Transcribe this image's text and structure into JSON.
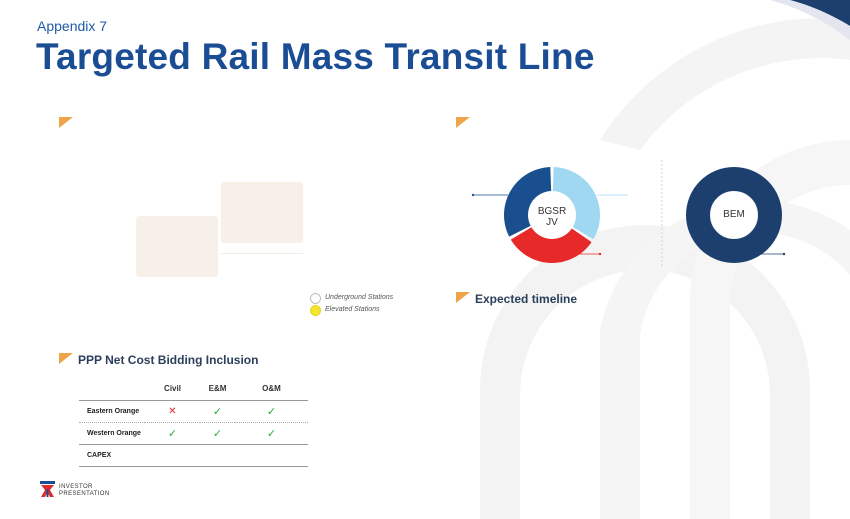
{
  "header": {
    "appendix": "Appendix 7",
    "title": "Targeted Rail Mass Transit Line"
  },
  "map": {
    "legend": [
      {
        "label": "Underground Stations",
        "color": "#ffffff"
      },
      {
        "label": "Elevated Stations",
        "color": "#f4e531"
      }
    ]
  },
  "shareholding": {
    "donuts": [
      {
        "label_line1": "BGSR",
        "label_line2": "JV",
        "segments": [
          {
            "share": 0.34,
            "color": "#9fd8f0"
          },
          {
            "share": 0.33,
            "color": "#e62a2a"
          },
          {
            "share": 0.33,
            "color": "#1a4f8f"
          }
        ]
      },
      {
        "label_line1": "BEM",
        "label_line2": "",
        "segments": [
          {
            "share": 1.0,
            "color": "#1c3f6e"
          }
        ]
      }
    ]
  },
  "timeline": {
    "title": "Expected timeline"
  },
  "ppp": {
    "title": "PPP Net Cost Bidding Inclusion",
    "columns": [
      "Civil",
      "E&M",
      "O&M"
    ],
    "rows": [
      {
        "label": "Eastern Orange",
        "civil": "✕",
        "em": "✓",
        "om": "✓"
      },
      {
        "label": "Western Orange",
        "civil": "✓",
        "em": "✓",
        "om": "✓"
      },
      {
        "label": "CAPEX",
        "civil": "",
        "em": "",
        "om": ""
      }
    ]
  },
  "footer": {
    "line1": "INVESTOR",
    "line2": "PRESENTATION"
  },
  "colors": {
    "brand_blue": "#1a4d94",
    "accent_orange": "#eea449",
    "tick_green": "#2bab3a",
    "cross_red": "#e02b2b"
  }
}
